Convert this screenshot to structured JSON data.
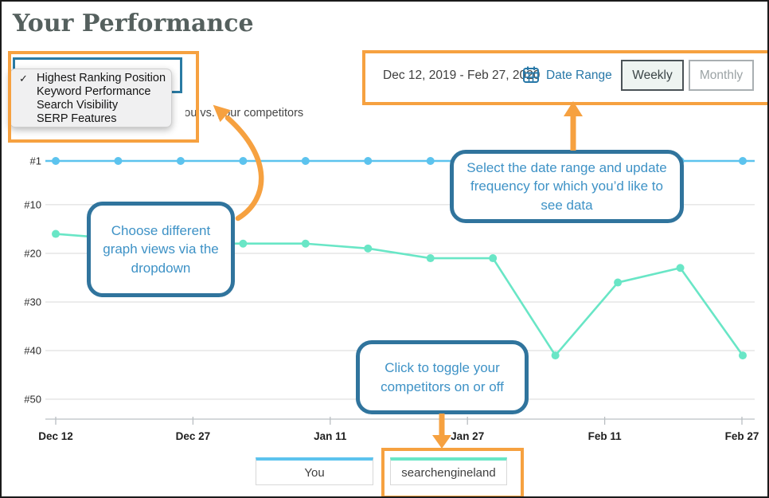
{
  "window": {
    "title": "Your Performance"
  },
  "graph_view_dropdown": {
    "checkmark": "✓",
    "options": [
      {
        "label": "Highest Ranking Position",
        "selected": true
      },
      {
        "label": "Keyword Performance",
        "selected": false
      },
      {
        "label": "Search Visibility",
        "selected": false
      },
      {
        "label": "SERP Features",
        "selected": false
      }
    ]
  },
  "subtitle": {
    "visible_text": "you vs. your competitors"
  },
  "date_bar": {
    "range_text": "Dec 12, 2019 - Feb 27, 2020",
    "calendar_icon": "calendar-icon",
    "date_range_label": "Date Range",
    "frequency_buttons": [
      {
        "label": "Weekly",
        "selected": true
      },
      {
        "label": "Monthly",
        "selected": false
      }
    ]
  },
  "callouts": [
    {
      "text": "Choose different graph views via the dropdown"
    },
    {
      "text": "Select the date range and update frequency for which you’d like to see data"
    },
    {
      "text": "Click to toggle your competitors on or off"
    }
  ],
  "legend": [
    {
      "label": "You",
      "color": "#5CC3EE"
    },
    {
      "label": "searchengineland",
      "color": "#69E6C6"
    }
  ],
  "chart_data": {
    "type": "line",
    "title": "Your Performance",
    "x_tick_labels": [
      "Dec 12",
      "Dec 27",
      "Jan 11",
      "Jan 27",
      "Feb 11",
      "Feb 27"
    ],
    "y_tick_labels": [
      "#1",
      "#10",
      "#20",
      "#30",
      "#40",
      "#50"
    ],
    "y_tick_ranks": [
      1,
      10,
      20,
      30,
      40,
      50
    ],
    "ylim": [
      1,
      50
    ],
    "y_axis_note": "ranking position, inverted (#1 at top)",
    "x_note": "12 weekly data points from Dec 12, 2019 to Feb 27, 2020",
    "grid": true,
    "series": [
      {
        "name": "You",
        "color": "#5CC3EE",
        "ranks": [
          1,
          1,
          1,
          1,
          1,
          1,
          1,
          1,
          1,
          1,
          1,
          1
        ]
      },
      {
        "name": "searchengineland",
        "color": "#69E6C6",
        "ranks": [
          16,
          17,
          18,
          18,
          18,
          19,
          21,
          21,
          41,
          26,
          23,
          41
        ]
      }
    ]
  },
  "colors": {
    "highlight_orange": "#F6A140",
    "callout_border": "#30749D",
    "callout_text": "#3E92C6",
    "select_border": "#2A7BA4",
    "link_blue": "#2878A8",
    "gridline": "#D9D9D9"
  }
}
